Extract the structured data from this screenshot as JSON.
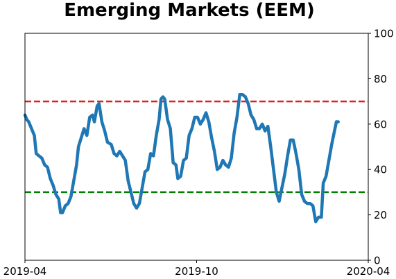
{
  "chart_data": {
    "type": "line",
    "title": "Emerging Markets (EEM)",
    "xlabel": "",
    "ylabel": "",
    "x_axis": {
      "min": "2019-04-01",
      "max": "2020-04-01",
      "ticks": [
        {
          "date": "2019-04-01",
          "label": "2019-04"
        },
        {
          "date": "2019-10-01",
          "label": "2019-10"
        },
        {
          "date": "2020-04-01",
          "label": "2020-04"
        }
      ]
    },
    "y_axis": {
      "position": "right",
      "min": 0,
      "max": 100,
      "ticks": [
        0,
        20,
        40,
        60,
        80,
        100
      ]
    },
    "grid": false,
    "legend": "none",
    "reference_lines": [
      {
        "y": 70,
        "color": "#d62728",
        "style": "dashed"
      },
      {
        "y": 30,
        "color": "#008000",
        "style": "dashed"
      }
    ],
    "series": [
      {
        "color": "#1f77b4",
        "points": [
          [
            "2019-04-01",
            64
          ],
          [
            "2019-04-03",
            62
          ],
          [
            "2019-04-05",
            61
          ],
          [
            "2019-04-08",
            58
          ],
          [
            "2019-04-11",
            55
          ],
          [
            "2019-04-13",
            47
          ],
          [
            "2019-04-16",
            46
          ],
          [
            "2019-04-19",
            45
          ],
          [
            "2019-04-22",
            42
          ],
          [
            "2019-04-25",
            41
          ],
          [
            "2019-04-28",
            36
          ],
          [
            "2019-05-01",
            33
          ],
          [
            "2019-05-04",
            29
          ],
          [
            "2019-05-07",
            27
          ],
          [
            "2019-05-09",
            21
          ],
          [
            "2019-05-11",
            21
          ],
          [
            "2019-05-14",
            24
          ],
          [
            "2019-05-17",
            25
          ],
          [
            "2019-05-20",
            28
          ],
          [
            "2019-05-23",
            35
          ],
          [
            "2019-05-26",
            42
          ],
          [
            "2019-05-28",
            50
          ],
          [
            "2019-05-31",
            54
          ],
          [
            "2019-06-03",
            58
          ],
          [
            "2019-06-06",
            55
          ],
          [
            "2019-06-09",
            63
          ],
          [
            "2019-06-12",
            64
          ],
          [
            "2019-06-14",
            61
          ],
          [
            "2019-06-17",
            68
          ],
          [
            "2019-06-19",
            69
          ],
          [
            "2019-06-22",
            61
          ],
          [
            "2019-06-25",
            57
          ],
          [
            "2019-06-28",
            52
          ],
          [
            "2019-07-02",
            51
          ],
          [
            "2019-07-05",
            47
          ],
          [
            "2019-07-08",
            46
          ],
          [
            "2019-07-11",
            48
          ],
          [
            "2019-07-14",
            46
          ],
          [
            "2019-07-17",
            44
          ],
          [
            "2019-07-20",
            35
          ],
          [
            "2019-07-23",
            30
          ],
          [
            "2019-07-26",
            25
          ],
          [
            "2019-07-29",
            23
          ],
          [
            "2019-08-01",
            25
          ],
          [
            "2019-08-04",
            32
          ],
          [
            "2019-08-07",
            39
          ],
          [
            "2019-08-10",
            40
          ],
          [
            "2019-08-13",
            47
          ],
          [
            "2019-08-16",
            46
          ],
          [
            "2019-08-19",
            55
          ],
          [
            "2019-08-22",
            62
          ],
          [
            "2019-08-24",
            71
          ],
          [
            "2019-08-26",
            72
          ],
          [
            "2019-08-28",
            71
          ],
          [
            "2019-08-31",
            62
          ],
          [
            "2019-09-03",
            58
          ],
          [
            "2019-09-06",
            43
          ],
          [
            "2019-09-09",
            42
          ],
          [
            "2019-09-11",
            36
          ],
          [
            "2019-09-14",
            37
          ],
          [
            "2019-09-17",
            44
          ],
          [
            "2019-09-20",
            45
          ],
          [
            "2019-09-23",
            55
          ],
          [
            "2019-09-26",
            58
          ],
          [
            "2019-09-29",
            63
          ],
          [
            "2019-10-02",
            63
          ],
          [
            "2019-10-05",
            60
          ],
          [
            "2019-10-08",
            62
          ],
          [
            "2019-10-11",
            65
          ],
          [
            "2019-10-14",
            61
          ],
          [
            "2019-10-17",
            54
          ],
          [
            "2019-10-20",
            48
          ],
          [
            "2019-10-23",
            40
          ],
          [
            "2019-10-26",
            41
          ],
          [
            "2019-10-29",
            44
          ],
          [
            "2019-11-01",
            42
          ],
          [
            "2019-11-04",
            41
          ],
          [
            "2019-11-07",
            45
          ],
          [
            "2019-11-10",
            56
          ],
          [
            "2019-11-13",
            63
          ],
          [
            "2019-11-16",
            73
          ],
          [
            "2019-11-19",
            73
          ],
          [
            "2019-11-22",
            72
          ],
          [
            "2019-11-25",
            69
          ],
          [
            "2019-11-28",
            64
          ],
          [
            "2019-12-01",
            62
          ],
          [
            "2019-12-04",
            58
          ],
          [
            "2019-12-07",
            58
          ],
          [
            "2019-12-10",
            60
          ],
          [
            "2019-12-13",
            57
          ],
          [
            "2019-12-16",
            59
          ],
          [
            "2019-12-19",
            50
          ],
          [
            "2019-12-22",
            40
          ],
          [
            "2019-12-25",
            30
          ],
          [
            "2019-12-28",
            26
          ],
          [
            "2019-12-31",
            32
          ],
          [
            "2020-01-03",
            38
          ],
          [
            "2020-01-06",
            46
          ],
          [
            "2020-01-09",
            53
          ],
          [
            "2020-01-12",
            53
          ],
          [
            "2020-01-15",
            47
          ],
          [
            "2020-01-18",
            40
          ],
          [
            "2020-01-21",
            29
          ],
          [
            "2020-01-24",
            26
          ],
          [
            "2020-01-27",
            25
          ],
          [
            "2020-01-30",
            25
          ],
          [
            "2020-02-02",
            24
          ],
          [
            "2020-02-05",
            17
          ],
          [
            "2020-02-08",
            19
          ],
          [
            "2020-02-11",
            19
          ],
          [
            "2020-02-13",
            34
          ],
          [
            "2020-02-16",
            37
          ],
          [
            "2020-02-19",
            44
          ],
          [
            "2020-02-22",
            51
          ],
          [
            "2020-02-25",
            57
          ],
          [
            "2020-02-27",
            61
          ],
          [
            "2020-02-29",
            61
          ]
        ]
      }
    ]
  }
}
